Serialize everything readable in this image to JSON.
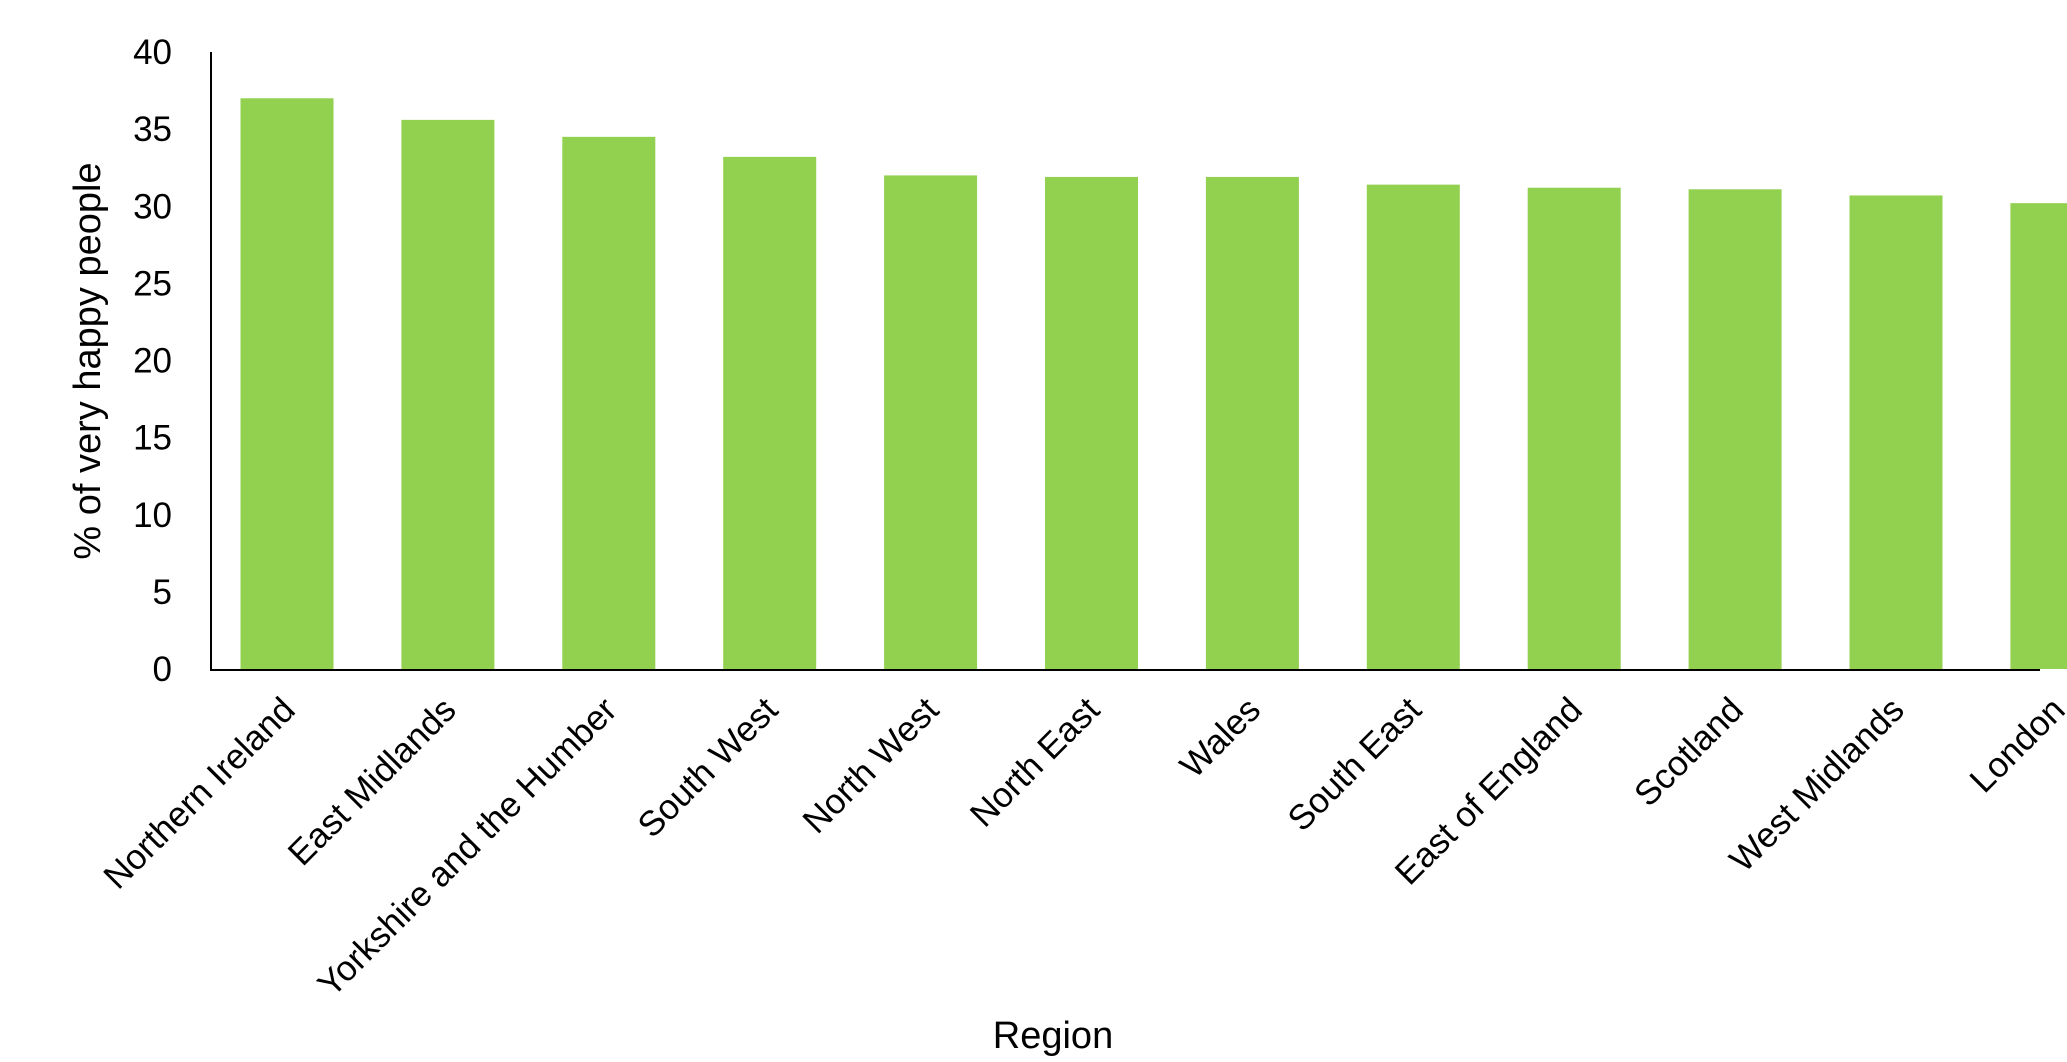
{
  "chart_data": {
    "type": "bar",
    "title": "",
    "xlabel": "Region",
    "ylabel": "% of very happy people",
    "ylim": [
      0,
      40
    ],
    "yticks": [
      0,
      5,
      10,
      15,
      20,
      25,
      30,
      35,
      40
    ],
    "grid": false,
    "legend": "none",
    "bar_color": "#92D050",
    "categories": [
      "Northern Ireland",
      "East Midlands",
      "Yorkshire and the Humber",
      "South West",
      "North West",
      "North East",
      "Wales",
      "South East",
      "East of England",
      "Scotland",
      "West Midlands",
      "London"
    ],
    "values": [
      37.0,
      35.6,
      34.5,
      33.2,
      32.0,
      31.9,
      31.9,
      31.4,
      31.2,
      31.1,
      30.7,
      30.2
    ]
  }
}
